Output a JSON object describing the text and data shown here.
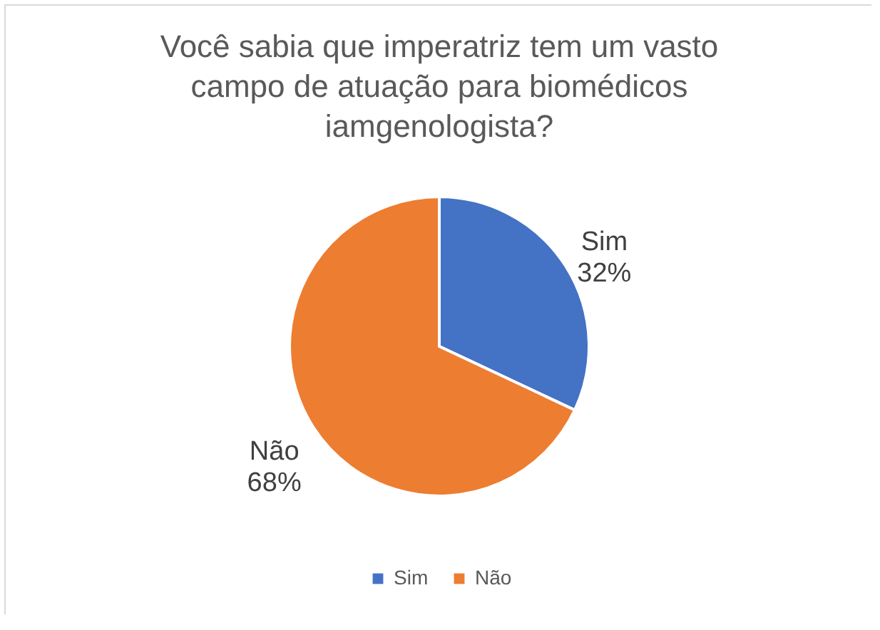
{
  "chart_data": {
    "type": "pie",
    "title": "Você sabia que imperatriz tem um vasto campo de atuação para biomédicos iamgenologista?",
    "categories": [
      "Sim",
      "Não"
    ],
    "values": [
      32,
      68
    ],
    "colors": [
      "#4472c4",
      "#ed7d31"
    ],
    "value_labels": [
      "32%",
      "68%"
    ],
    "legend": "bottom"
  }
}
